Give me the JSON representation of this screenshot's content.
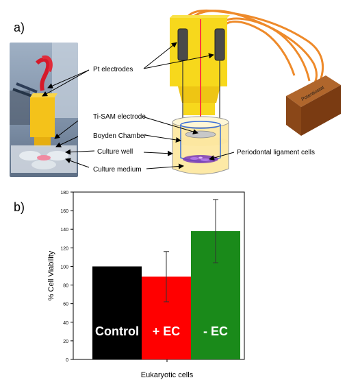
{
  "panel_a": {
    "label": "a)",
    "callouts": {
      "pt_electrodes": "Pt electrodes",
      "ti_sam": "Ti-SAM electrode",
      "boyden": "Boyden Chamber",
      "culture_well": "Culture well",
      "culture_medium": "Culture medium",
      "pdl_cells": "Periodontal ligament cells"
    },
    "potentiostat": "Potentiostat",
    "colors": {
      "holder": "#f7d81c",
      "electrode": "#4a4a4a",
      "wire": "#ee8a2a",
      "potentiostat_top": "#b0662c",
      "potentiostat_front": "#7a3b12",
      "well_fill": "#fde9a6",
      "laser": "#ff3b3b"
    }
  },
  "panel_b": {
    "label": "b)",
    "chart_data": {
      "type": "bar",
      "categories": [
        "Control",
        "+ EC",
        "- EC"
      ],
      "values": [
        100,
        89,
        138
      ],
      "errors": [
        0,
        27,
        34
      ],
      "colors": [
        "#000000",
        "#ff0000",
        "#1a8a1a"
      ],
      "ylabel": "% Cell Viability",
      "xlabel": "Eukaryotic cells",
      "ylim": [
        0,
        180
      ],
      "yticks": [
        0,
        20,
        40,
        60,
        80,
        100,
        120,
        140,
        160,
        180
      ]
    }
  }
}
